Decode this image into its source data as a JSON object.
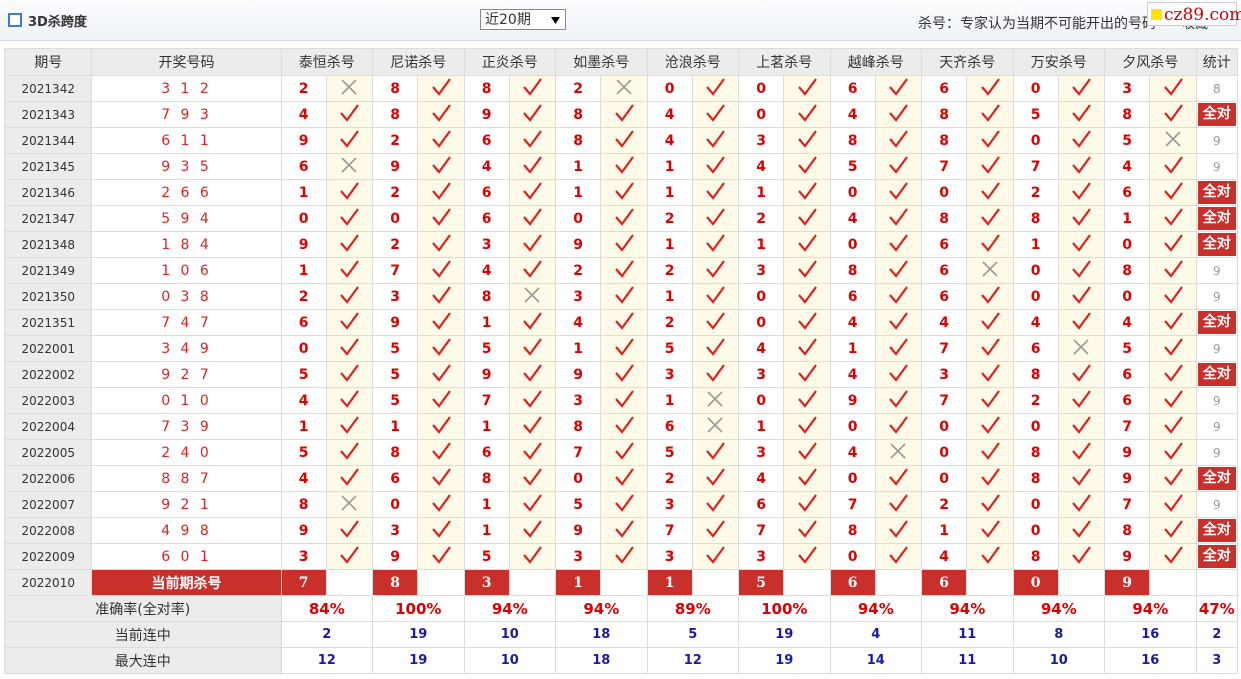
{
  "header": {
    "title": "3D杀跨度",
    "period_select": "近20期",
    "note": "杀号：专家认为当期不可能开出的号码",
    "favorite": "收藏",
    "watermark": "cz89.com"
  },
  "table": {
    "columns": [
      "期号",
      "开奖号码",
      "泰恒杀号",
      "尼诺杀号",
      "正炎杀号",
      "如墨杀号",
      "沧浪杀号",
      "上茗杀号",
      "越峰杀号",
      "天齐杀号",
      "万安杀号",
      "夕风杀号",
      "统计"
    ],
    "rows": [
      {
        "period": "2021342",
        "numbers": "3 1 2",
        "kills": [
          "2",
          "8",
          "8",
          "2",
          "0",
          "0",
          "6",
          "6",
          "0",
          "3"
        ],
        "hits": [
          false,
          true,
          true,
          false,
          true,
          true,
          true,
          true,
          true,
          true
        ],
        "stat": "8"
      },
      {
        "period": "2021343",
        "numbers": "7 9 3",
        "kills": [
          "4",
          "8",
          "9",
          "8",
          "4",
          "0",
          "4",
          "8",
          "5",
          "8"
        ],
        "hits": [
          true,
          true,
          true,
          true,
          true,
          true,
          true,
          true,
          true,
          true
        ],
        "stat": "全对"
      },
      {
        "period": "2021344",
        "numbers": "6 1 1",
        "kills": [
          "9",
          "2",
          "6",
          "8",
          "4",
          "3",
          "8",
          "8",
          "0",
          "5"
        ],
        "hits": [
          true,
          true,
          true,
          true,
          true,
          true,
          true,
          true,
          true,
          false
        ],
        "stat": "9"
      },
      {
        "period": "2021345",
        "numbers": "9 3 5",
        "kills": [
          "6",
          "9",
          "4",
          "1",
          "1",
          "4",
          "5",
          "7",
          "7",
          "4"
        ],
        "hits": [
          false,
          true,
          true,
          true,
          true,
          true,
          true,
          true,
          true,
          true
        ],
        "stat": "9"
      },
      {
        "period": "2021346",
        "numbers": "2 6 6",
        "kills": [
          "1",
          "2",
          "6",
          "1",
          "1",
          "1",
          "0",
          "0",
          "2",
          "6"
        ],
        "hits": [
          true,
          true,
          true,
          true,
          true,
          true,
          true,
          true,
          true,
          true
        ],
        "stat": "全对"
      },
      {
        "period": "2021347",
        "numbers": "5 9 4",
        "kills": [
          "0",
          "0",
          "6",
          "0",
          "2",
          "2",
          "4",
          "8",
          "8",
          "1"
        ],
        "hits": [
          true,
          true,
          true,
          true,
          true,
          true,
          true,
          true,
          true,
          true
        ],
        "stat": "全对"
      },
      {
        "period": "2021348",
        "numbers": "1 8 4",
        "kills": [
          "9",
          "2",
          "3",
          "9",
          "1",
          "1",
          "0",
          "6",
          "1",
          "0"
        ],
        "hits": [
          true,
          true,
          true,
          true,
          true,
          true,
          true,
          true,
          true,
          true
        ],
        "stat": "全对"
      },
      {
        "period": "2021349",
        "numbers": "1 0 6",
        "kills": [
          "1",
          "7",
          "4",
          "2",
          "2",
          "3",
          "8",
          "6",
          "0",
          "8"
        ],
        "hits": [
          true,
          true,
          true,
          true,
          true,
          true,
          true,
          false,
          true,
          true
        ],
        "stat": "9"
      },
      {
        "period": "2021350",
        "numbers": "0 3 8",
        "kills": [
          "2",
          "3",
          "8",
          "3",
          "1",
          "0",
          "6",
          "6",
          "0",
          "0"
        ],
        "hits": [
          true,
          true,
          false,
          true,
          true,
          true,
          true,
          true,
          true,
          true
        ],
        "stat": "9"
      },
      {
        "period": "2021351",
        "numbers": "7 4 7",
        "kills": [
          "6",
          "9",
          "1",
          "4",
          "2",
          "0",
          "4",
          "4",
          "4",
          "4"
        ],
        "hits": [
          true,
          true,
          true,
          true,
          true,
          true,
          true,
          true,
          true,
          true
        ],
        "stat": "全对"
      },
      {
        "period": "2022001",
        "numbers": "3 4 9",
        "kills": [
          "0",
          "5",
          "5",
          "1",
          "5",
          "4",
          "1",
          "7",
          "6",
          "5"
        ],
        "hits": [
          true,
          true,
          true,
          true,
          true,
          true,
          true,
          true,
          false,
          true
        ],
        "stat": "9"
      },
      {
        "period": "2022002",
        "numbers": "9 2 7",
        "kills": [
          "5",
          "5",
          "9",
          "9",
          "3",
          "3",
          "4",
          "3",
          "8",
          "6"
        ],
        "hits": [
          true,
          true,
          true,
          true,
          true,
          true,
          true,
          true,
          true,
          true
        ],
        "stat": "全对"
      },
      {
        "period": "2022003",
        "numbers": "0 1 0",
        "kills": [
          "4",
          "5",
          "7",
          "3",
          "1",
          "0",
          "9",
          "7",
          "2",
          "6"
        ],
        "hits": [
          true,
          true,
          true,
          true,
          false,
          true,
          true,
          true,
          true,
          true
        ],
        "stat": "9"
      },
      {
        "period": "2022004",
        "numbers": "7 3 9",
        "kills": [
          "1",
          "1",
          "1",
          "8",
          "6",
          "1",
          "0",
          "0",
          "0",
          "7"
        ],
        "hits": [
          true,
          true,
          true,
          true,
          false,
          true,
          true,
          true,
          true,
          true
        ],
        "stat": "9"
      },
      {
        "period": "2022005",
        "numbers": "2 4 0",
        "kills": [
          "5",
          "8",
          "6",
          "7",
          "5",
          "3",
          "4",
          "0",
          "8",
          "9"
        ],
        "hits": [
          true,
          true,
          true,
          true,
          true,
          true,
          false,
          true,
          true,
          true
        ],
        "stat": "9"
      },
      {
        "period": "2022006",
        "numbers": "8 8 7",
        "kills": [
          "4",
          "6",
          "8",
          "0",
          "2",
          "4",
          "0",
          "0",
          "8",
          "9"
        ],
        "hits": [
          true,
          true,
          true,
          true,
          true,
          true,
          true,
          true,
          true,
          true
        ],
        "stat": "全对"
      },
      {
        "period": "2022007",
        "numbers": "9 2 1",
        "kills": [
          "8",
          "0",
          "1",
          "5",
          "3",
          "6",
          "7",
          "2",
          "0",
          "7"
        ],
        "hits": [
          false,
          true,
          true,
          true,
          true,
          true,
          true,
          true,
          true,
          true
        ],
        "stat": "9"
      },
      {
        "period": "2022008",
        "numbers": "4 9 8",
        "kills": [
          "9",
          "3",
          "1",
          "9",
          "7",
          "7",
          "8",
          "1",
          "0",
          "8"
        ],
        "hits": [
          true,
          true,
          true,
          true,
          true,
          true,
          true,
          true,
          true,
          true
        ],
        "stat": "全对"
      },
      {
        "period": "2022009",
        "numbers": "6 0 1",
        "kills": [
          "3",
          "9",
          "5",
          "3",
          "3",
          "3",
          "0",
          "4",
          "8",
          "9"
        ],
        "hits": [
          true,
          true,
          true,
          true,
          true,
          true,
          true,
          true,
          true,
          true
        ],
        "stat": "全对"
      }
    ],
    "current": {
      "period": "2022010",
      "label": "当前期杀号",
      "kills": [
        "7",
        "8",
        "3",
        "1",
        "1",
        "5",
        "6",
        "6",
        "0",
        "9"
      ]
    },
    "summary": [
      {
        "label": "准确率(全对率)",
        "values": [
          "84%",
          "100%",
          "94%",
          "94%",
          "89%",
          "100%",
          "94%",
          "94%",
          "94%",
          "94%",
          "47%"
        ]
      },
      {
        "label": "当前连中",
        "values": [
          "2",
          "19",
          "10",
          "18",
          "5",
          "19",
          "4",
          "11",
          "8",
          "16",
          "2"
        ]
      },
      {
        "label": "最大连中",
        "values": [
          "12",
          "19",
          "10",
          "18",
          "12",
          "19",
          "14",
          "11",
          "10",
          "16",
          "3"
        ]
      }
    ]
  }
}
